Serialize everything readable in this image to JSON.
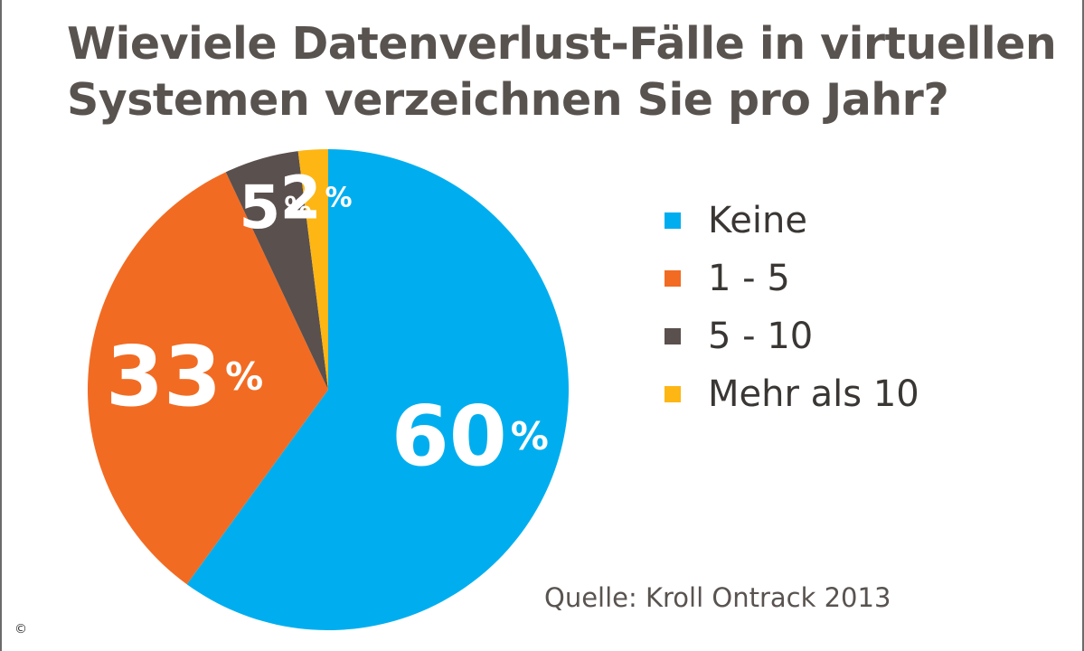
{
  "title_line1": "Wieviele Datenverlust-Fälle in virtuellen",
  "title_line2": "Systemen verzeichnen Sie pro Jahr?",
  "source": "Quelle: Kroll Ontrack 2013",
  "copyright": "©",
  "chart_data": {
    "type": "pie",
    "title": "Wieviele Datenverlust-Fälle in virtuellen Systemen verzeichnen Sie pro Jahr?",
    "categories": [
      "Keine",
      "1 - 5",
      "5 - 10",
      "Mehr als 10"
    ],
    "values": [
      60,
      33,
      5,
      2
    ],
    "value_labels": [
      "60",
      "33",
      "5",
      "2"
    ],
    "unit": "%",
    "colors": [
      "#00AEEF",
      "#F26B22",
      "#5A504D",
      "#FDB614"
    ],
    "legend_placement": "right"
  }
}
